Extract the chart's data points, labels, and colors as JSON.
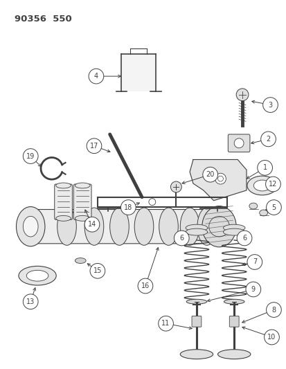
{
  "title": "90356  550",
  "bg_color": "#ffffff",
  "lc": "#404040",
  "fig_width": 4.14,
  "fig_height": 5.33,
  "dpi": 100
}
